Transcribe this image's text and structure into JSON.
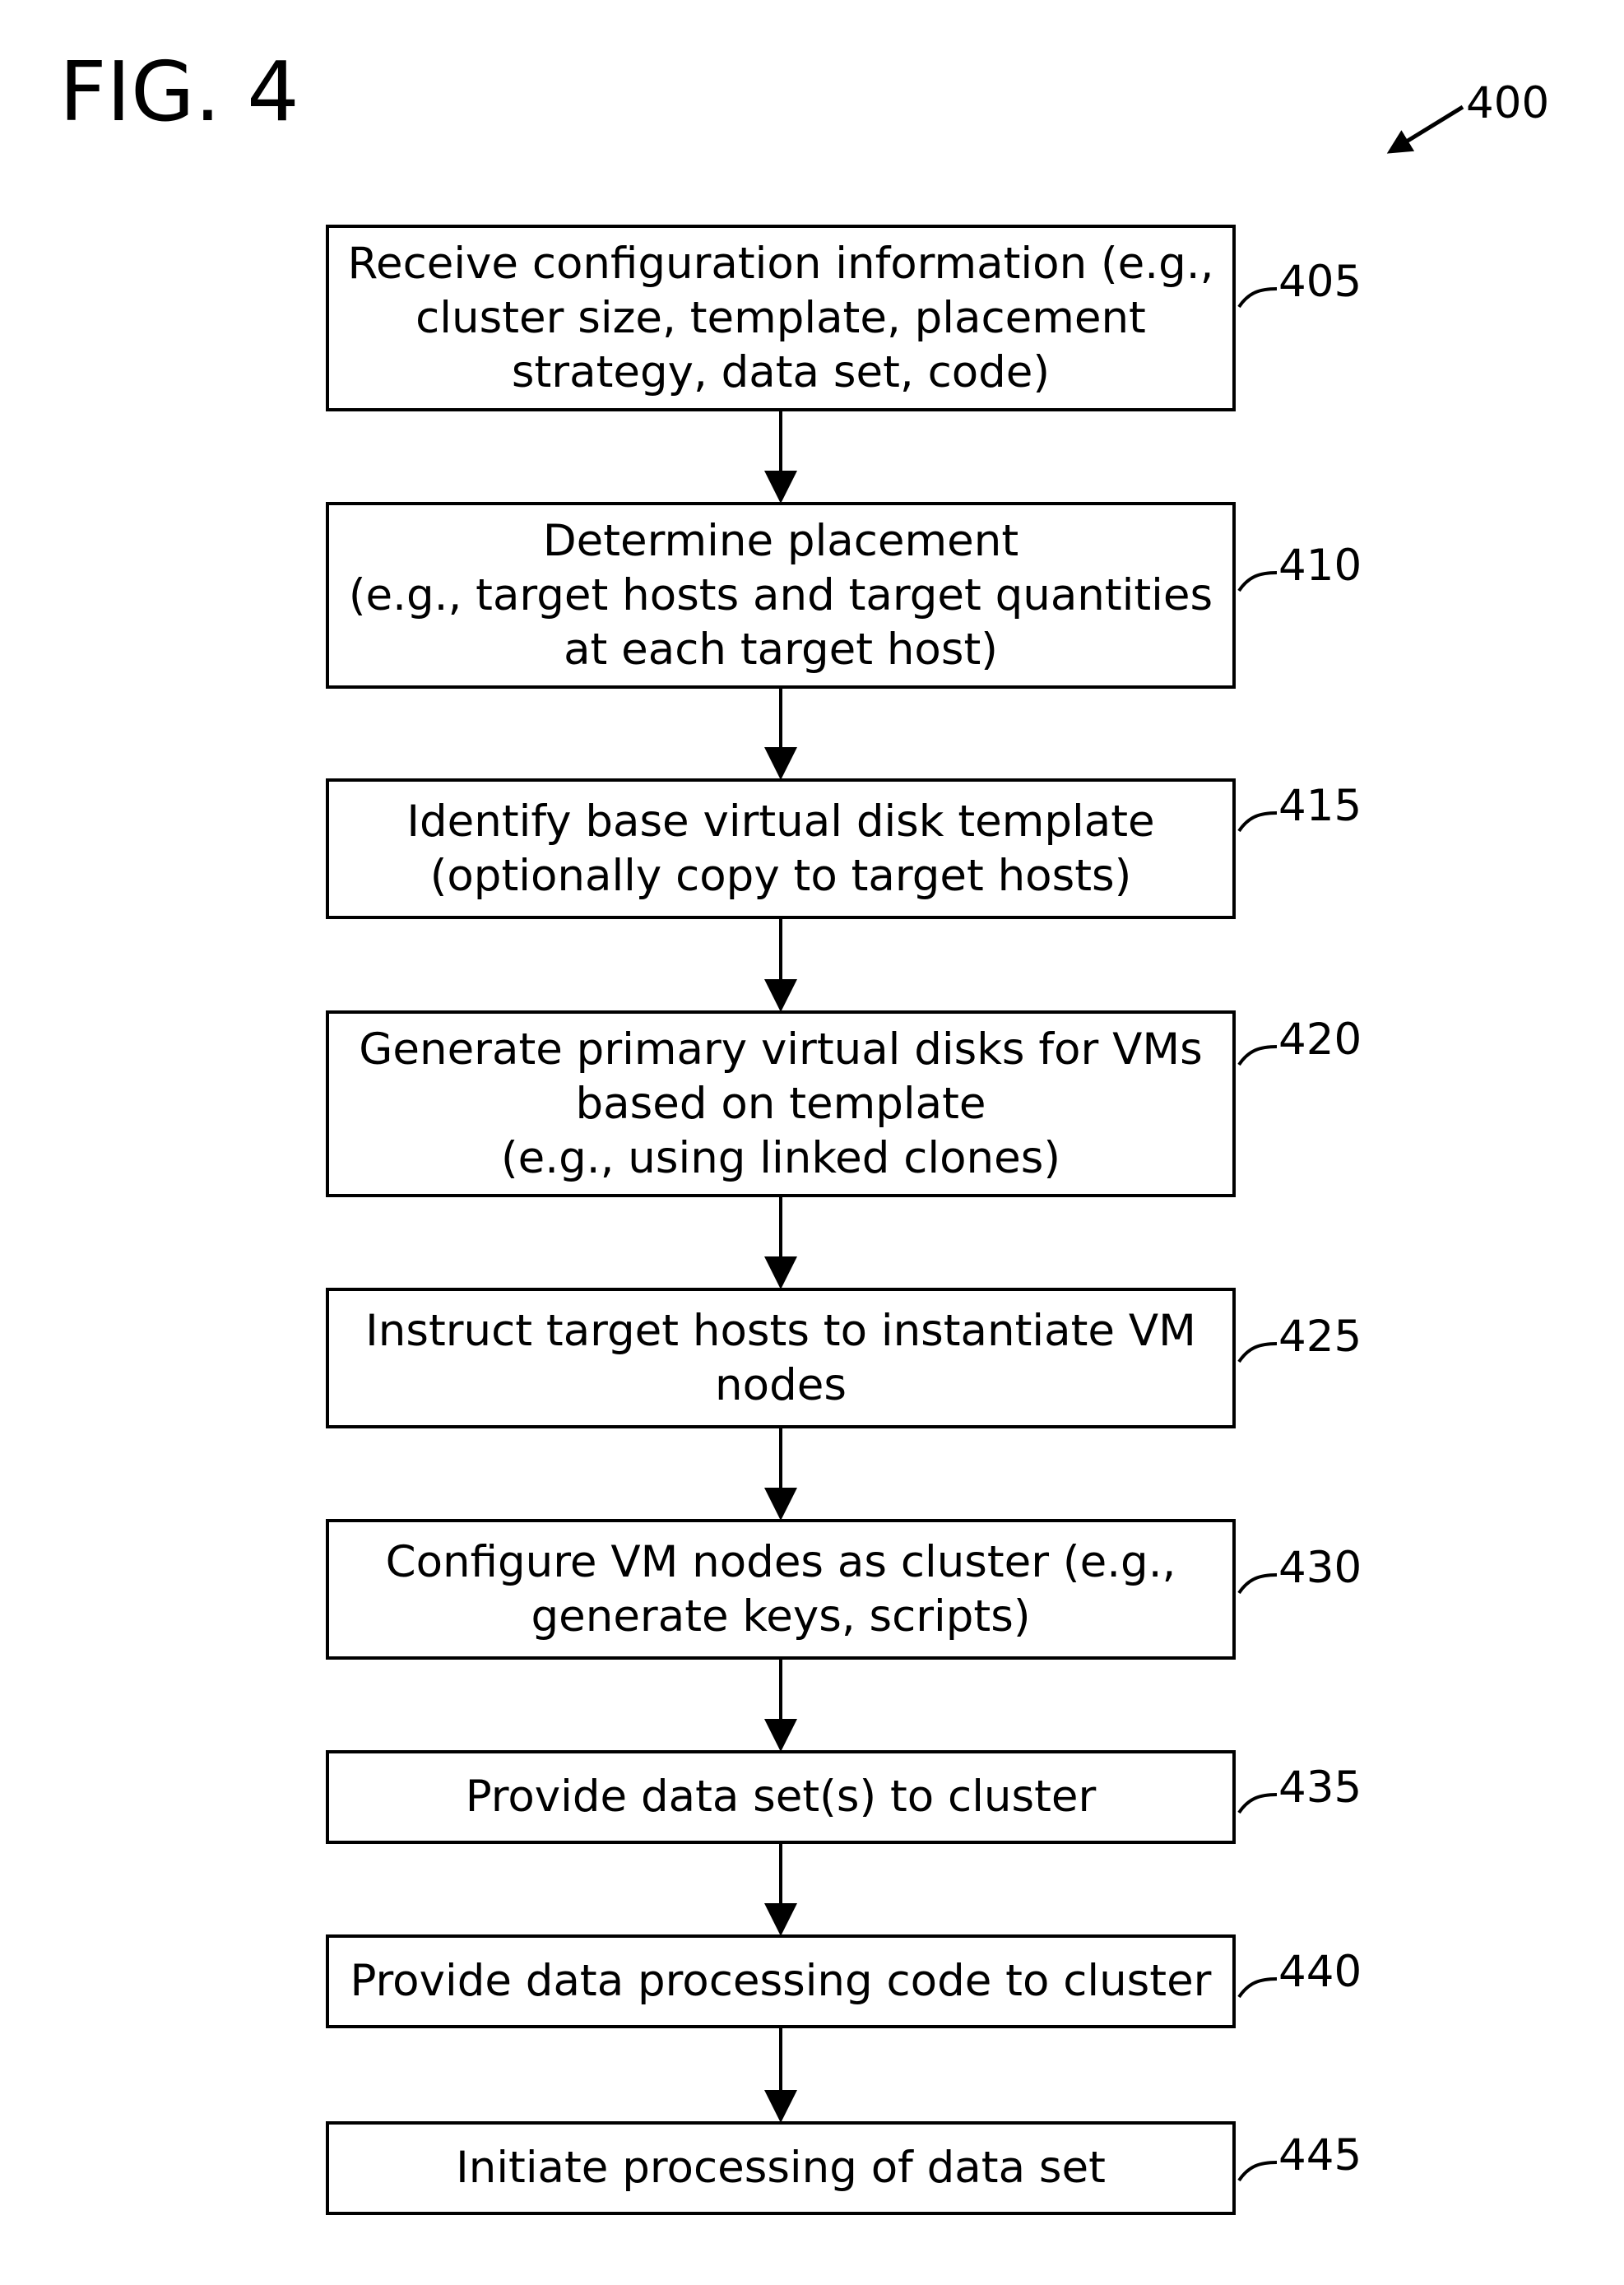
{
  "figure": {
    "label": "FIG. 4",
    "ref": "400"
  },
  "steps": [
    {
      "ref": "405",
      "lines": [
        "Receive configuration information (e.g.,",
        "cluster size, template, placement",
        "strategy, data set, code)"
      ]
    },
    {
      "ref": "410",
      "lines": [
        "Determine placement",
        "(e.g., target hosts and target quantities",
        "at each target host)"
      ]
    },
    {
      "ref": "415",
      "lines": [
        "Identify base virtual disk template",
        "(optionally copy to target hosts)"
      ]
    },
    {
      "ref": "420",
      "lines": [
        "Generate primary virtual disks for VMs",
        "based on template",
        "(e.g., using linked clones)"
      ]
    },
    {
      "ref": "425",
      "lines": [
        "Instruct target hosts to instantiate VM",
        "nodes"
      ]
    },
    {
      "ref": "430",
      "lines": [
        "Configure VM nodes as cluster (e.g.,",
        "generate keys, scripts)"
      ]
    },
    {
      "ref": "435",
      "lines": [
        "Provide data set(s) to cluster"
      ]
    },
    {
      "ref": "440",
      "lines": [
        "Provide data processing code to cluster"
      ]
    },
    {
      "ref": "445",
      "lines": [
        "Initiate processing of data set"
      ]
    }
  ]
}
